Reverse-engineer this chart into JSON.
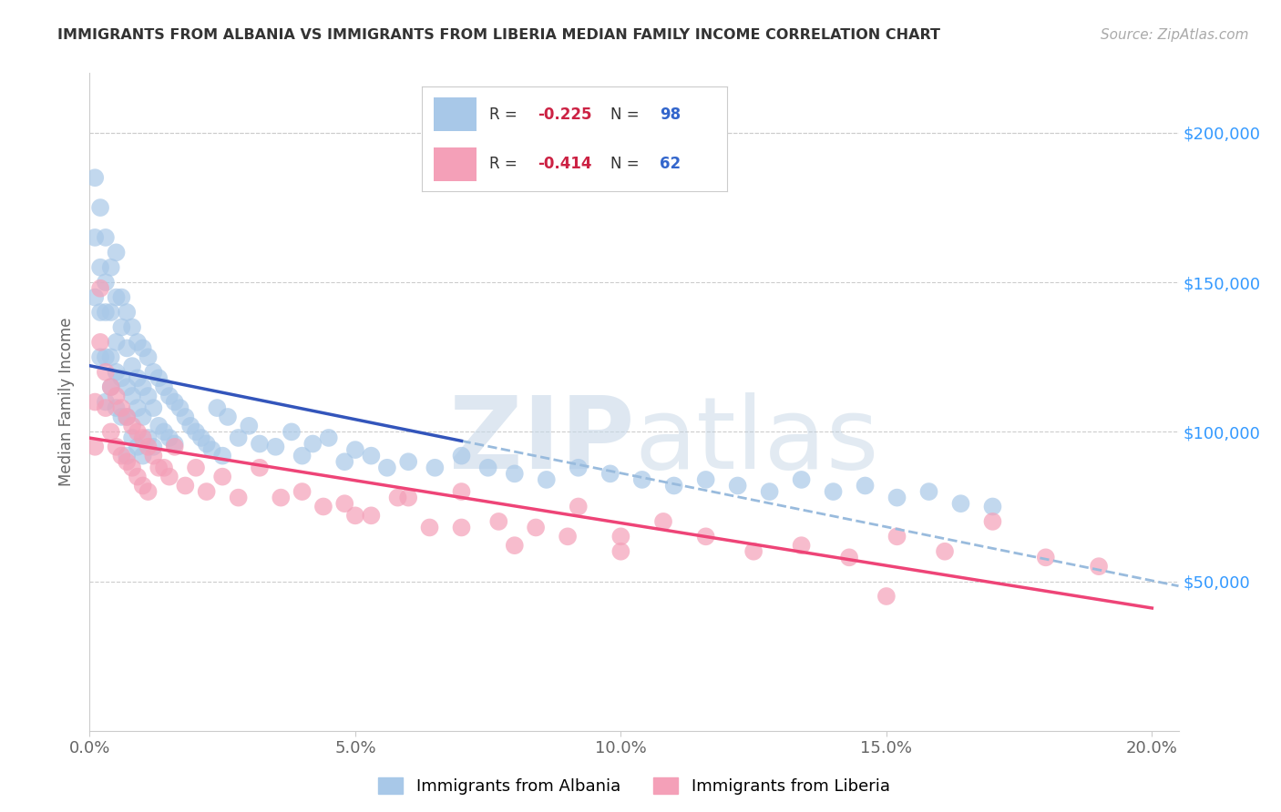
{
  "title": "IMMIGRANTS FROM ALBANIA VS IMMIGRANTS FROM LIBERIA MEDIAN FAMILY INCOME CORRELATION CHART",
  "source": "Source: ZipAtlas.com",
  "ylabel": "Median Family Income",
  "xlim": [
    0.0,
    0.205
  ],
  "ylim": [
    0,
    220000
  ],
  "xtick_labels": [
    "0.0%",
    "5.0%",
    "10.0%",
    "15.0%",
    "20.0%"
  ],
  "xtick_vals": [
    0.0,
    0.05,
    0.1,
    0.15,
    0.2
  ],
  "ytick_labels": [
    "$50,000",
    "$100,000",
    "$150,000",
    "$200,000"
  ],
  "ytick_vals": [
    50000,
    100000,
    150000,
    200000
  ],
  "albania_color": "#a8c8e8",
  "liberia_color": "#f4a0b8",
  "albania_line_color": "#3355bb",
  "liberia_line_color": "#ee4477",
  "dashed_line_color": "#99bbdd",
  "R_albania": "-0.225",
  "N_albania": "98",
  "R_liberia": "-0.414",
  "N_liberia": "62",
  "watermark_zip": "ZIP",
  "watermark_atlas": "atlas",
  "legend_label_albania": "Immigrants from Albania",
  "legend_label_liberia": "Immigrants from Liberia",
  "albania_x": [
    0.001,
    0.001,
    0.001,
    0.002,
    0.002,
    0.002,
    0.002,
    0.003,
    0.003,
    0.003,
    0.003,
    0.003,
    0.004,
    0.004,
    0.004,
    0.004,
    0.005,
    0.005,
    0.005,
    0.005,
    0.005,
    0.006,
    0.006,
    0.006,
    0.006,
    0.007,
    0.007,
    0.007,
    0.007,
    0.007,
    0.008,
    0.008,
    0.008,
    0.008,
    0.009,
    0.009,
    0.009,
    0.009,
    0.01,
    0.01,
    0.01,
    0.01,
    0.011,
    0.011,
    0.011,
    0.012,
    0.012,
    0.012,
    0.013,
    0.013,
    0.014,
    0.014,
    0.015,
    0.015,
    0.016,
    0.016,
    0.017,
    0.018,
    0.019,
    0.02,
    0.021,
    0.022,
    0.023,
    0.024,
    0.025,
    0.026,
    0.028,
    0.03,
    0.032,
    0.035,
    0.038,
    0.04,
    0.042,
    0.045,
    0.048,
    0.05,
    0.053,
    0.056,
    0.06,
    0.065,
    0.07,
    0.075,
    0.08,
    0.086,
    0.092,
    0.098,
    0.104,
    0.11,
    0.116,
    0.122,
    0.128,
    0.134,
    0.14,
    0.146,
    0.152,
    0.158,
    0.164,
    0.17
  ],
  "albania_y": [
    185000,
    165000,
    145000,
    175000,
    155000,
    140000,
    125000,
    165000,
    150000,
    140000,
    125000,
    110000,
    155000,
    140000,
    125000,
    115000,
    160000,
    145000,
    130000,
    120000,
    108000,
    145000,
    135000,
    118000,
    105000,
    140000,
    128000,
    115000,
    105000,
    92000,
    135000,
    122000,
    112000,
    98000,
    130000,
    118000,
    108000,
    95000,
    128000,
    115000,
    105000,
    92000,
    125000,
    112000,
    98000,
    120000,
    108000,
    95000,
    118000,
    102000,
    115000,
    100000,
    112000,
    98000,
    110000,
    96000,
    108000,
    105000,
    102000,
    100000,
    98000,
    96000,
    94000,
    108000,
    92000,
    105000,
    98000,
    102000,
    96000,
    95000,
    100000,
    92000,
    96000,
    98000,
    90000,
    94000,
    92000,
    88000,
    90000,
    88000,
    92000,
    88000,
    86000,
    84000,
    88000,
    86000,
    84000,
    82000,
    84000,
    82000,
    80000,
    84000,
    80000,
    82000,
    78000,
    80000,
    76000,
    75000
  ],
  "liberia_x": [
    0.001,
    0.001,
    0.002,
    0.002,
    0.003,
    0.003,
    0.004,
    0.004,
    0.005,
    0.005,
    0.006,
    0.006,
    0.007,
    0.007,
    0.008,
    0.008,
    0.009,
    0.009,
    0.01,
    0.01,
    0.011,
    0.011,
    0.012,
    0.013,
    0.014,
    0.015,
    0.016,
    0.018,
    0.02,
    0.022,
    0.025,
    0.028,
    0.032,
    0.036,
    0.04,
    0.044,
    0.048,
    0.053,
    0.058,
    0.064,
    0.07,
    0.077,
    0.084,
    0.092,
    0.1,
    0.108,
    0.116,
    0.125,
    0.134,
    0.143,
    0.152,
    0.161,
    0.17,
    0.18,
    0.19,
    0.05,
    0.06,
    0.07,
    0.08,
    0.09,
    0.1,
    0.15
  ],
  "liberia_y": [
    110000,
    95000,
    148000,
    130000,
    120000,
    108000,
    115000,
    100000,
    112000,
    95000,
    108000,
    92000,
    105000,
    90000,
    102000,
    88000,
    100000,
    85000,
    98000,
    82000,
    95000,
    80000,
    92000,
    88000,
    88000,
    85000,
    95000,
    82000,
    88000,
    80000,
    85000,
    78000,
    88000,
    78000,
    80000,
    75000,
    76000,
    72000,
    78000,
    68000,
    80000,
    70000,
    68000,
    75000,
    65000,
    70000,
    65000,
    60000,
    62000,
    58000,
    65000,
    60000,
    70000,
    58000,
    55000,
    72000,
    78000,
    68000,
    62000,
    65000,
    60000,
    45000
  ]
}
